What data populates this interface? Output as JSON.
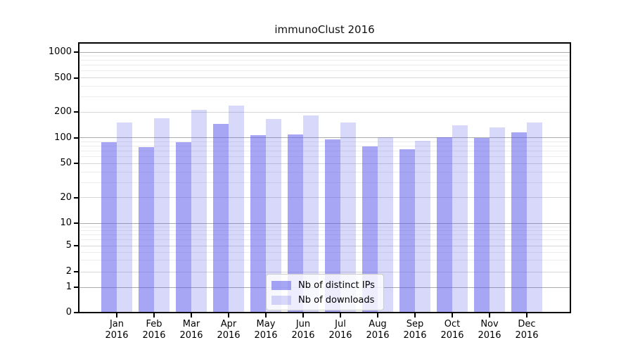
{
  "title": "immunoClust 2016",
  "legend": {
    "items": [
      {
        "label": "Nb of distinct IPs"
      },
      {
        "label": "Nb of downloads"
      }
    ]
  },
  "colors": {
    "bar_ips": "rgba(92,92,235,0.55)",
    "bar_downloads": "rgba(92,92,235,0.24)",
    "grid_major": "#ababab",
    "grid_mid": "#d6d6d6",
    "grid_minor": "#ececec",
    "spine": "#000000",
    "legend_bg": "rgba(255,255,255,0.8)",
    "legend_border": "#cccccc",
    "text": "#000000"
  },
  "chart_data": {
    "type": "bar",
    "title": "immunoClust 2016",
    "categories": [
      "Jan",
      "Feb",
      "Mar",
      "Apr",
      "May",
      "Jun",
      "Jul",
      "Aug",
      "Sep",
      "Oct",
      "Nov",
      "Dec"
    ],
    "x_year": "2016",
    "series": [
      {
        "name": "Nb of distinct IPs",
        "values": [
          89,
          77,
          89,
          145,
          108,
          110,
          96,
          79,
          74,
          102,
          99,
          115
        ]
      },
      {
        "name": "Nb of downloads",
        "values": [
          150,
          170,
          210,
          236,
          165,
          183,
          150,
          102,
          93,
          140,
          132,
          152
        ]
      }
    ],
    "y_axis": {
      "scale": "log-like with 0 baseline",
      "tick_values": [
        1000,
        500,
        200,
        100,
        50,
        20,
        10,
        5,
        2,
        1,
        0
      ],
      "major_gridlines": [
        1000,
        100,
        10,
        1
      ],
      "mid_gridlines": [
        500,
        200,
        50,
        20,
        5,
        2
      ],
      "minor_gridlines": [
        900,
        800,
        700,
        600,
        400,
        300,
        90,
        80,
        70,
        60,
        40,
        30,
        9,
        8,
        7,
        6,
        4,
        3
      ],
      "ylim": [
        0,
        1300
      ]
    },
    "legend_position": "lower center inside plot",
    "grid": "horizontal only"
  }
}
